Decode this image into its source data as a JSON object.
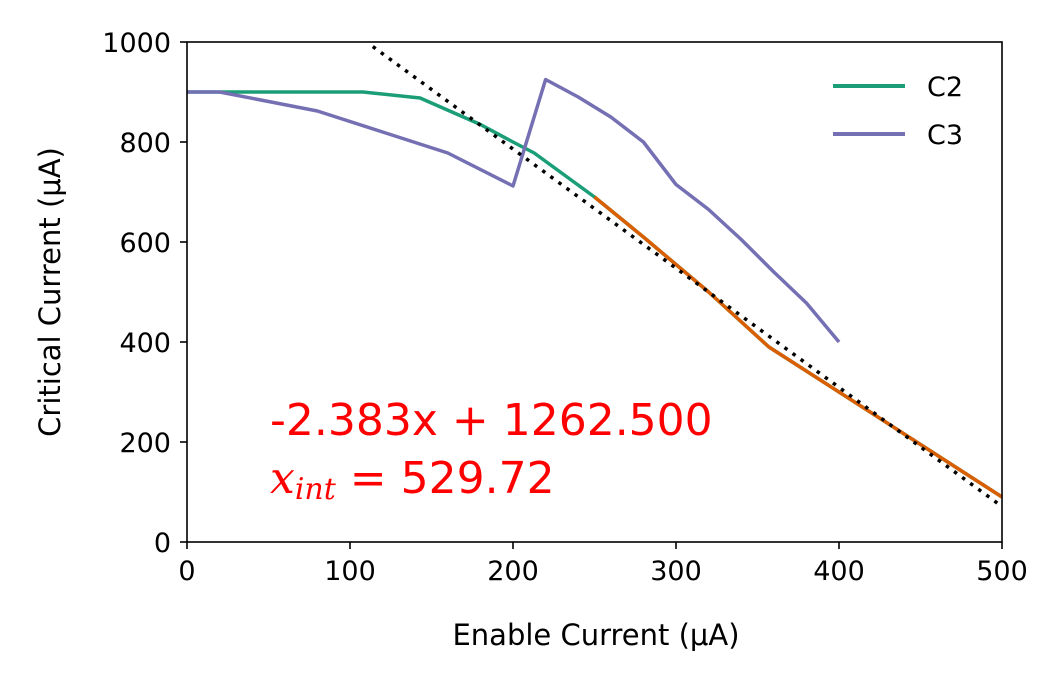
{
  "colors": {
    "c2": "#1b9e77",
    "c3": "#7570b3",
    "fit_segment": "#d95f02",
    "fit_line": "#000000",
    "annotation": "#ff0000"
  },
  "chart_data": {
    "type": "line",
    "title": "",
    "xlabel": "Enable Current (μA)",
    "ylabel": "Critical Current (μA)",
    "xlim": [
      0,
      500
    ],
    "ylim": [
      0,
      1000
    ],
    "xticks": [
      0,
      100,
      200,
      300,
      400,
      500
    ],
    "yticks": [
      0,
      200,
      400,
      600,
      800,
      1000
    ],
    "xtick_labels": [
      "0",
      "100",
      "200",
      "300",
      "400",
      "500"
    ],
    "ytick_labels": [
      "0",
      "200",
      "400",
      "600",
      "800",
      "1000"
    ],
    "grid": false,
    "legend_position": "top-right",
    "series": [
      {
        "name": "C2",
        "x": [
          0,
          20,
          60,
          108,
          143,
          180,
          200,
          213,
          250,
          280,
          320,
          357,
          400,
          450,
          500
        ],
        "y": [
          900,
          900,
          900,
          900,
          888,
          835,
          800,
          778,
          690,
          610,
          500,
          390,
          300,
          195,
          90
        ]
      },
      {
        "name": "C3",
        "x": [
          0,
          20,
          80,
          120,
          160,
          200,
          220,
          240,
          260,
          280,
          300,
          320,
          340,
          360,
          380,
          400
        ],
        "y": [
          900,
          900,
          862,
          820,
          778,
          712,
          925,
          890,
          850,
          800,
          715,
          665,
          605,
          540,
          478,
          400
        ]
      }
    ],
    "fit_segment": {
      "x": [
        250,
        280,
        320,
        357,
        400,
        450,
        500
      ],
      "y": [
        690,
        610,
        500,
        390,
        300,
        195,
        90
      ]
    },
    "fit_line": {
      "slope": -2.383,
      "intercept": 1262.5,
      "x_range": [
        114,
        500
      ],
      "style": "dotted"
    },
    "annotation": {
      "equation": "-2.383x + 1262.500",
      "xint_var": "x",
      "xint_sub": "int",
      "xint_value": " = 529.72"
    }
  }
}
